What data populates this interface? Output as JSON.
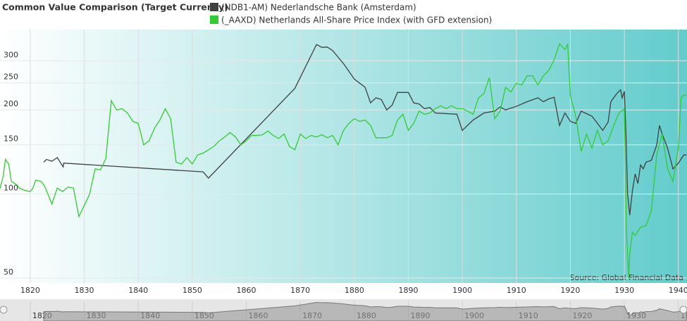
{
  "chart_data": {
    "type": "line",
    "title": "Common Value Comparison (Target Currency)",
    "annotation": "Source: Global Financial Data",
    "log_y": true,
    "grid": true,
    "xlim": [
      1814.4,
      1941.6
    ],
    "xticks": [
      1820,
      1830,
      1840,
      1850,
      1860,
      1870,
      1880,
      1890,
      1900,
      1910,
      1920,
      1930,
      1940
    ],
    "ylim": [
      48,
      388
    ],
    "yticks": [
      50,
      100,
      150,
      200,
      250,
      300
    ],
    "series": [
      {
        "name": "(NDB1-AM) Nederlandsche Bank (Amsterdam)",
        "color": "#404040",
        "x": [
          1822.5,
          1823,
          1824,
          1825,
          1826.1,
          1826.2,
          1852,
          1853,
          1869,
          1873,
          1874,
          1875,
          1876,
          1878,
          1880,
          1882,
          1883,
          1884,
          1885,
          1886,
          1887,
          1888,
          1890,
          1891,
          1892,
          1893,
          1894,
          1895,
          1899,
          1900,
          1902,
          1904,
          1906,
          1907,
          1908,
          1910,
          1912,
          1914,
          1915,
          1916,
          1917,
          1918,
          1919,
          1920,
          1921,
          1922,
          1924,
          1926,
          1927,
          1927.5,
          1928.6,
          1929.3,
          1929.6,
          1930,
          1930.3,
          1930.6,
          1931,
          1931.5,
          1932,
          1932.5,
          1933,
          1933.5,
          1934,
          1935,
          1936,
          1936.5,
          1937,
          1938,
          1939,
          1940,
          1941,
          1941.5
        ],
        "values": [
          130,
          133,
          131,
          135,
          125,
          129,
          120,
          114,
          239,
          343,
          335,
          336,
          326,
          293,
          258,
          241,
          212,
          221,
          218,
          200,
          208,
          231,
          231,
          212,
          210,
          202,
          204,
          195,
          193,
          169,
          184,
          195,
          198,
          205,
          200,
          206,
          214,
          221,
          214,
          219,
          222,
          176,
          195,
          182,
          179,
          198,
          190,
          169,
          181,
          214,
          229,
          236,
          221,
          233,
          164,
          100,
          84,
          103,
          118,
          109,
          127,
          123,
          130,
          132,
          150,
          176,
          164,
          146,
          123,
          129,
          138,
          138
        ]
      },
      {
        "name": "(_AAXD) Netherlands All-Share Price Index (with GFD extension)",
        "color": "#33cc33",
        "x": [
          1814.4,
          1815,
          1815.4,
          1816,
          1816.5,
          1817.5,
          1818,
          1819,
          1820,
          1820.5,
          1821,
          1822,
          1822.5,
          1823,
          1824,
          1825,
          1826,
          1827,
          1828,
          1829,
          1830,
          1831,
          1832,
          1833,
          1834,
          1835,
          1836,
          1837,
          1838,
          1839,
          1840,
          1841,
          1842,
          1843,
          1844,
          1845,
          1846,
          1847,
          1848,
          1849,
          1850,
          1851,
          1852,
          1853,
          1854,
          1855,
          1856,
          1857,
          1858,
          1859,
          1860,
          1861,
          1862,
          1863,
          1864,
          1865,
          1866,
          1867,
          1868,
          1869,
          1870,
          1871,
          1872,
          1873,
          1874,
          1875,
          1876,
          1877,
          1878,
          1879,
          1880,
          1881,
          1882,
          1883,
          1884,
          1885,
          1886,
          1887,
          1888,
          1889,
          1890,
          1891,
          1892,
          1893,
          1894,
          1895,
          1896,
          1897,
          1898,
          1899,
          1900,
          1901,
          1902,
          1903,
          1904,
          1905,
          1906,
          1907,
          1908,
          1909,
          1910,
          1911,
          1912,
          1913,
          1914,
          1915,
          1916,
          1917,
          1918,
          1919,
          1919.5,
          1920,
          1921,
          1922,
          1923,
          1924,
          1925,
          1926,
          1927,
          1928,
          1929,
          1930,
          1930.4,
          1930.8,
          1931,
          1931.5,
          1932,
          1933,
          1934,
          1935,
          1936,
          1937,
          1937.5,
          1938,
          1939,
          1940,
          1940.5,
          1941,
          1941.5
        ],
        "values": [
          104.5,
          116,
          133,
          128,
          111,
          108,
          105,
          103,
          102,
          105,
          112,
          111,
          108,
          103,
          92,
          105,
          102,
          106,
          105,
          83,
          91,
          100,
          123,
          122,
          134,
          216,
          200,
          202,
          195,
          182,
          179,
          150,
          155,
          172,
          184,
          202,
          186,
          130,
          128,
          135,
          128,
          138,
          140,
          144,
          148,
          155,
          160,
          166,
          160,
          150,
          155,
          162,
          162,
          163,
          168,
          162,
          158,
          164,
          148,
          144,
          164,
          158,
          162,
          160,
          163,
          159,
          162,
          150,
          169,
          179,
          186,
          182,
          184,
          176,
          159,
          159,
          159,
          162,
          184,
          193,
          169,
          179,
          198,
          193,
          195,
          202,
          207,
          202,
          207,
          202,
          202,
          198,
          193,
          221,
          229,
          261,
          186,
          198,
          241,
          232,
          249,
          246,
          265,
          265,
          246,
          265,
          277,
          302,
          345,
          329,
          345,
          226,
          190,
          142,
          164,
          146,
          169,
          150,
          155,
          175,
          195,
          202,
          73,
          50,
          61,
          73,
          71,
          76,
          77,
          87,
          138,
          164,
          142,
          123,
          111,
          146,
          221,
          226,
          226
        ]
      }
    ]
  }
}
